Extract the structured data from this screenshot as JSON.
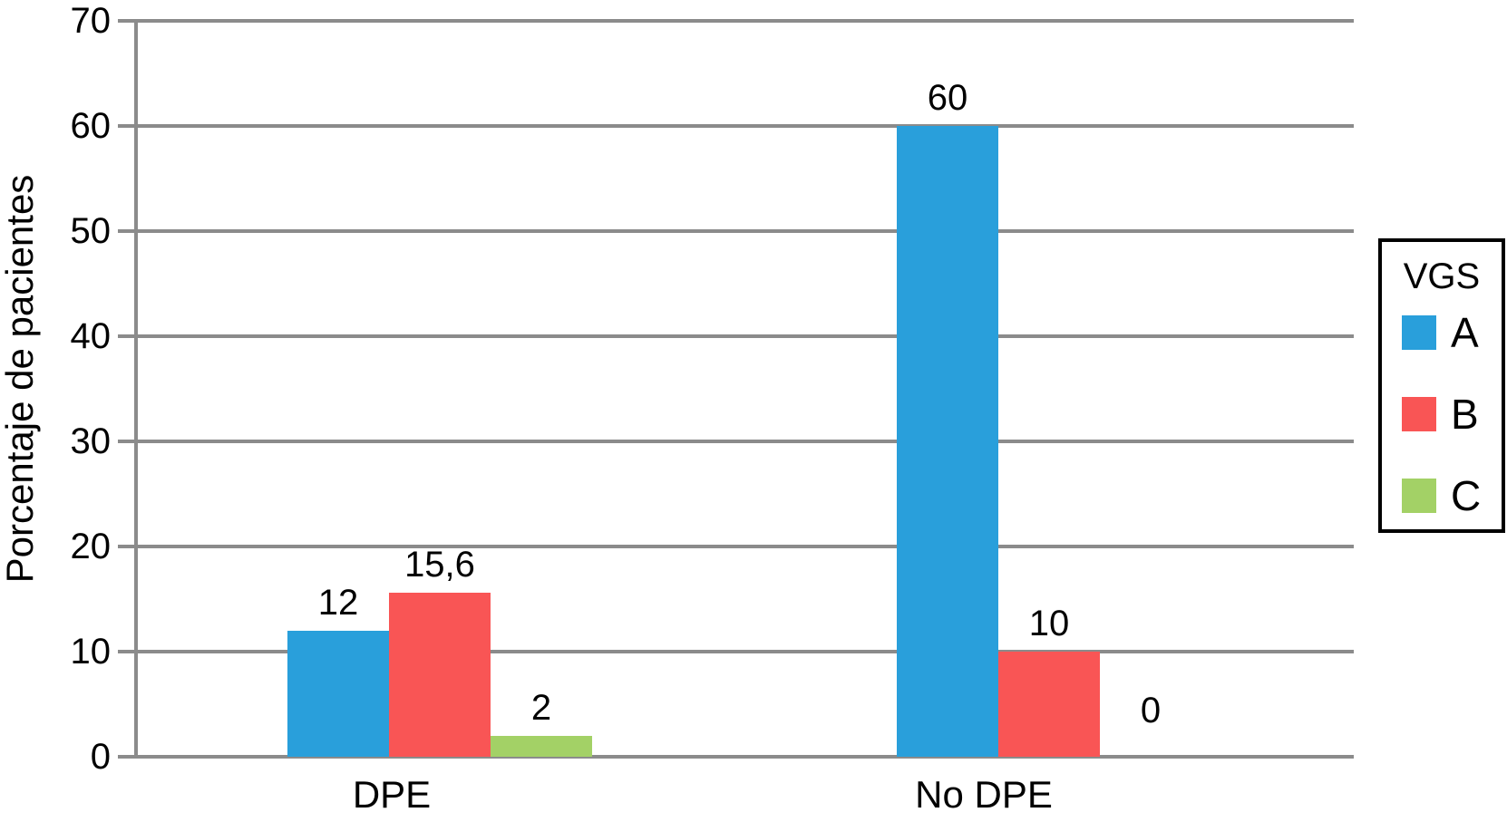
{
  "chart_data": {
    "type": "bar",
    "title": "",
    "xlabel": "",
    "ylabel": "Porcentaje de pacientes",
    "categories": [
      "DPE",
      "No DPE"
    ],
    "series": [
      {
        "name": "A",
        "color": "#299FDB",
        "values": [
          12,
          60
        ],
        "value_labels": [
          "12",
          "60"
        ]
      },
      {
        "name": "B",
        "color": "#F95555",
        "values": [
          15.6,
          10
        ],
        "value_labels": [
          "15,6",
          "10"
        ]
      },
      {
        "name": "C",
        "color": "#A3D166",
        "values": [
          2,
          0
        ],
        "value_labels": [
          "2",
          "0"
        ]
      }
    ],
    "ylim": [
      0,
      70
    ],
    "yticks": [
      0,
      10,
      20,
      30,
      40,
      50,
      60,
      70
    ],
    "grid": true,
    "legend_title": "VGS",
    "legend_position": "right"
  },
  "colors": {
    "background": "#ffffff",
    "gridline": "#8B8B8B",
    "axis": "#8B8B8B",
    "text": "#000000",
    "legend_border": "#000000"
  }
}
